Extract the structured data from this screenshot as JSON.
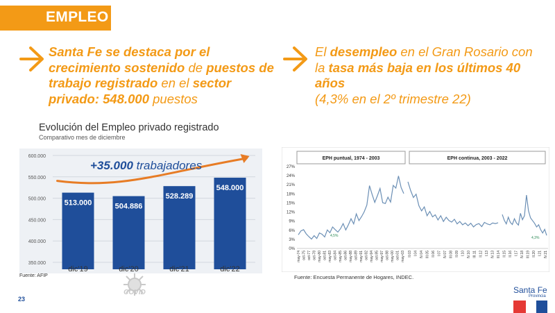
{
  "header": {
    "title": "EMPLEO"
  },
  "headline_left": {
    "parts": [
      "Santa Fe se destaca por el crecimiento sostenido",
      " de ",
      "puestos de trabajo registrado",
      " en el ",
      "sector privado: 548.000",
      " puestos"
    ]
  },
  "headline_right": {
    "parts": [
      "El ",
      "desempleo",
      " en el Gran Rosario con la ",
      "tasa más baja en los últimos 40 años",
      "(4,3%  en el 2º trimestre 22)"
    ]
  },
  "chart_data": [
    {
      "type": "bar",
      "title": "Evolución del Empleo privado registrado",
      "subtitle": "Comparativo mes de diciembre",
      "categories": [
        "dic'19",
        "dic'20",
        "dic'21",
        "dic'22"
      ],
      "values": [
        513000,
        504886,
        528289,
        548000
      ],
      "value_labels": [
        "513.000",
        "504.886",
        "528.289",
        "548.000"
      ],
      "ylim": [
        350000,
        600000
      ],
      "yticks": [
        350000,
        400000,
        450000,
        500000,
        550000,
        600000
      ],
      "ytick_labels": [
        "350.000",
        "400.000",
        "450.000",
        "500.000",
        "550.000",
        "600.000"
      ],
      "annotation": {
        "bold": "+35.000",
        "text": " trabajadores"
      },
      "color": "#1f4e9a",
      "trend_color": "#e77c25",
      "source": "Fuente: AFIP"
    },
    {
      "type": "line",
      "panels": [
        "EPH puntual, 1974 - 2003",
        "EPH continua, 2003 - 2022"
      ],
      "ylim": [
        0,
        27
      ],
      "yticks": [
        0,
        3,
        6,
        9,
        12,
        15,
        18,
        21,
        24,
        27
      ],
      "ytick_labels": [
        "0%",
        "3%",
        "6%",
        "9%",
        "12%",
        "15%",
        "18%",
        "21%",
        "24%",
        "27%"
      ],
      "series_puntual": [
        4.5,
        5.8,
        6.2,
        4.8,
        3.9,
        3.1,
        4.2,
        3.3,
        5.1,
        4.7,
        3.8,
        6.1,
        5.2,
        7.1,
        6.2,
        5.4,
        6.5,
        8.2,
        6.1,
        7.8,
        9.8,
        8.1,
        11.4,
        9.2,
        10.5,
        12.1,
        14.3,
        20.7,
        17.8,
        15.2,
        17.4,
        19.8,
        15.1,
        14.8,
        16.9,
        15.3,
        20.8,
        19.9,
        23.9,
        20.1,
        18.1
      ],
      "series_continua_1": [
        22.0,
        19.1,
        16.8,
        17.9,
        14.1,
        12.4,
        13.7,
        10.8,
        12.2,
        10.4,
        11.1,
        9.4,
        10.8,
        8.9,
        10.3,
        9.2,
        8.7,
        9.6,
        8.1,
        8.9,
        7.8,
        8.4,
        7.5,
        8.3,
        7.1,
        7.9,
        8.2,
        7.2,
        8.6,
        8.1,
        7.8,
        8.4,
        8.2,
        8.5
      ],
      "series_continua_2": [
        11.2,
        9.3,
        8.1,
        10.3,
        8.6,
        7.9,
        9.8,
        8.4,
        7.7,
        11.6,
        9.5,
        10.8,
        17.6,
        12.4,
        10.1,
        9.2,
        8.3,
        7.1,
        7.8,
        6.2,
        5.1,
        6.3,
        4.3
      ],
      "xtick_labels_puntual": [
        "may-74",
        "oct-75",
        "oct-77",
        "oct-78",
        "may-80",
        "oct-81",
        "may-83",
        "oct-84",
        "may-85",
        "oct-86",
        "may-88",
        "oct-89",
        "may-91",
        "oct-92",
        "may-94",
        "oct-95",
        "may-97",
        "oct-98",
        "may-00",
        "oct-01",
        "may-03"
      ],
      "xtick_labels_continua": [
        "II.03",
        "I.04",
        "IV.04",
        "III.05",
        "II.06",
        "I.07",
        "IV.07",
        "III.08",
        "II.09",
        "I.10",
        "IV.10",
        "III.11",
        "II.12",
        "I.13",
        "IV.13",
        "III.14",
        "II.15",
        "II.16",
        "I.17",
        "IV.18",
        "III.19",
        "II.20",
        "I.21",
        "IV.21"
      ],
      "annotations": [
        "4,5%",
        "4,3%"
      ],
      "color": "#6b8fb5",
      "annotation_color": "#2e8b57",
      "source": "Fuente: Encuesta Permanente de Hogares, INDEC."
    }
  ],
  "covid": {
    "label": "COVID"
  },
  "footer": {
    "page_number": "23",
    "brand_name": "Santa Fe",
    "brand_sub": "Provincia"
  },
  "colors": {
    "accent": "#f39a16",
    "bar": "#1f4e9a",
    "trend": "#e77c25"
  }
}
